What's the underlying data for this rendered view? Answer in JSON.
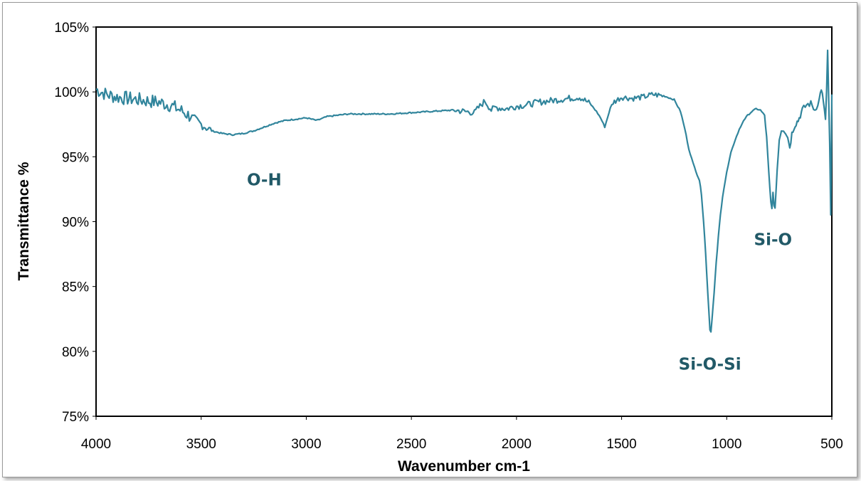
{
  "chart_data": {
    "type": "line",
    "title": "",
    "xlabel": "Wavenumber cm-1",
    "ylabel": "Transmittance %",
    "xlim": [
      4000,
      500
    ],
    "ylim": [
      75,
      105
    ],
    "x_reversed": true,
    "xticks": [
      "4000",
      "3500",
      "3000",
      "2500",
      "2000",
      "1500",
      "1000",
      "500"
    ],
    "yticks": [
      "75%",
      "80%",
      "85%",
      "90%",
      "95%",
      "100%",
      "105%"
    ],
    "grid": false,
    "legend": "none",
    "line_color": "#31859C",
    "annotation_color": "#215967",
    "annotations": [
      {
        "text": "O-H",
        "x": 3200,
        "y": 92.8
      },
      {
        "text": "Si-O-Si",
        "x": 1080,
        "y": 78.6
      },
      {
        "text": "Si-O",
        "x": 780,
        "y": 88.2
      }
    ],
    "series": [
      {
        "x": [
          4000,
          3950,
          3900,
          3850,
          3800,
          3750,
          3700,
          3650,
          3600,
          3550,
          3500,
          3450,
          3400,
          3350,
          3300,
          3250,
          3200,
          3150,
          3100,
          3000,
          2950,
          2900,
          2850,
          2800,
          2750,
          2700,
          2600,
          2500,
          2400,
          2300,
          2250,
          2200,
          2180,
          2150,
          2120,
          2100,
          2050,
          2000,
          1950,
          1900,
          1850,
          1800,
          1750,
          1700,
          1650,
          1620,
          1600,
          1580,
          1560,
          1540,
          1500,
          1450,
          1400,
          1350,
          1300,
          1250,
          1220,
          1200,
          1180,
          1160,
          1140,
          1130,
          1120,
          1110,
          1100,
          1090,
          1080,
          1075,
          1070,
          1060,
          1050,
          1040,
          1030,
          1020,
          1000,
          980,
          960,
          940,
          920,
          900,
          880,
          860,
          840,
          820,
          810,
          800,
          790,
          785,
          780,
          775,
          770,
          760,
          750,
          740,
          730,
          720,
          710,
          700,
          690,
          680,
          670,
          660,
          650,
          640,
          620,
          600,
          580,
          560,
          550,
          540,
          530,
          525,
          520,
          515,
          510,
          505,
          500
        ],
        "y": [
          100.2,
          99.8,
          99.6,
          99.5,
          99.4,
          99.3,
          99.2,
          99.0,
          98.6,
          98.1,
          97.5,
          97.0,
          96.8,
          96.7,
          96.8,
          97.0,
          97.3,
          97.6,
          97.8,
          98.0,
          97.8,
          98.1,
          98.2,
          98.3,
          98.3,
          98.3,
          98.3,
          98.4,
          98.5,
          98.6,
          98.5,
          98.4,
          98.8,
          99.3,
          98.6,
          98.8,
          98.7,
          98.9,
          99.0,
          99.2,
          99.3,
          99.4,
          99.5,
          99.6,
          99.1,
          98.5,
          98.0,
          97.3,
          98.4,
          99.2,
          99.6,
          99.5,
          99.6,
          99.8,
          99.7,
          99.4,
          98.5,
          97.2,
          95.6,
          94.5,
          93.6,
          93.2,
          92.1,
          90.0,
          87.5,
          84.5,
          81.7,
          81.5,
          82.5,
          84.5,
          86.8,
          88.8,
          90.5,
          91.9,
          93.8,
          95.3,
          96.3,
          97.1,
          97.8,
          98.2,
          98.5,
          98.7,
          98.6,
          98.2,
          96.5,
          93.8,
          91.5,
          91.0,
          92.3,
          91.2,
          91.0,
          94.0,
          96.3,
          97.0,
          97.0,
          96.8,
          96.5,
          95.7,
          96.8,
          97.3,
          97.6,
          97.8,
          98.2,
          98.6,
          99.0,
          99.1,
          98.6,
          99.4,
          100.3,
          99.2,
          97.9,
          100.0,
          103.2,
          99.4,
          96.0,
          90.5,
          99.8
        ]
      }
    ]
  }
}
